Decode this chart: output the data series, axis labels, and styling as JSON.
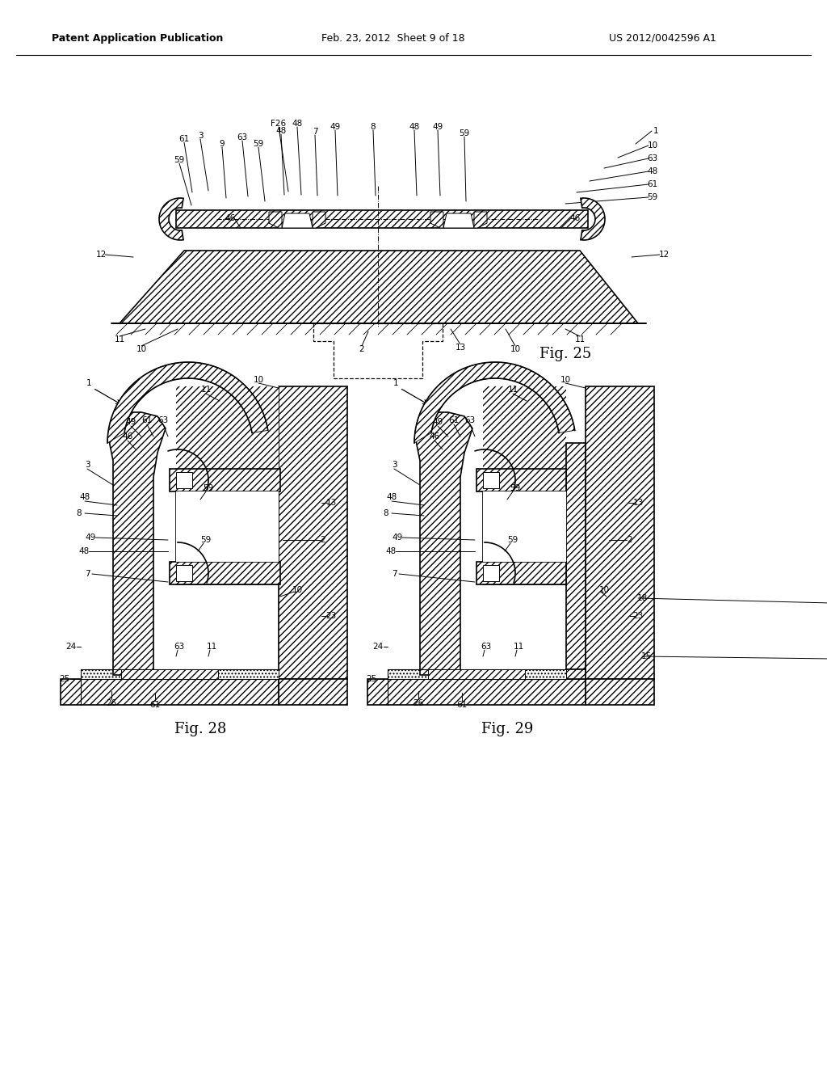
{
  "bg_color": "#ffffff",
  "line_color": "#000000",
  "header_left": "Patent Application Publication",
  "header_mid": "Feb. 23, 2012  Sheet 9 of 18",
  "header_right": "US 2012/0042596 A1",
  "fig25_label": "Fig. 25",
  "fig28_label": "Fig. 28",
  "fig29_label": "Fig. 29",
  "hatch_pattern": "////",
  "hatch_dot": "....",
  "lw_main": 1.2,
  "lw_thin": 0.7,
  "fs_label": 7.5,
  "fs_fig": 13
}
